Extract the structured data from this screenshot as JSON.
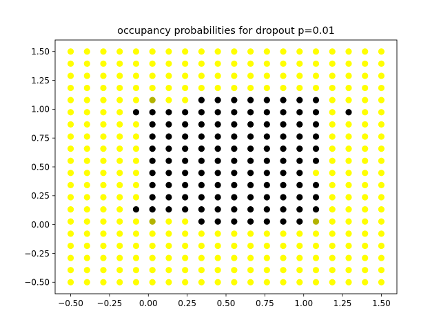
{
  "chart_data": {
    "type": "scatter",
    "title": "occupancy probabilities for dropout p=0.01",
    "xlabel": "",
    "ylabel": "",
    "xlim": [
      -0.6,
      1.6
    ],
    "ylim": [
      -0.6,
      1.6
    ],
    "x_ticks": [
      -0.5,
      -0.25,
      0.0,
      0.25,
      0.5,
      0.75,
      1.0,
      1.25,
      1.5
    ],
    "x_tick_labels": [
      "−0.50",
      "−0.25",
      "0.00",
      "0.25",
      "0.50",
      "0.75",
      "1.00",
      "1.25",
      "1.50"
    ],
    "y_ticks": [
      -0.5,
      -0.25,
      0.0,
      0.25,
      0.5,
      0.75,
      1.0,
      1.25,
      1.5
    ],
    "y_tick_labels": [
      "−0.50",
      "−0.25",
      "0.00",
      "0.25",
      "0.50",
      "0.75",
      "1.00",
      "1.25",
      "1.50"
    ],
    "grid": false,
    "colors": {
      "low_probability": "#ffff00",
      "high_probability": "#000000"
    },
    "x": [
      -0.5,
      -0.394737,
      -0.289474,
      -0.184211,
      -0.078947,
      0.026316,
      0.131579,
      0.236842,
      0.342105,
      0.447368,
      0.552632,
      0.657895,
      0.763158,
      0.868421,
      0.973684,
      1.078947,
      1.184211,
      1.289474,
      1.394737,
      1.5
    ],
    "y": [
      -0.5,
      -0.394737,
      -0.289474,
      -0.184211,
      -0.078947,
      0.026316,
      0.131579,
      0.236842,
      0.342105,
      0.447368,
      0.552632,
      0.657895,
      0.763158,
      0.868421,
      0.973684,
      1.078947,
      1.184211,
      1.289474,
      1.394737,
      1.5
    ],
    "occupancy_rows_top_to_bottom": [
      "00000000000000000000",
      "00000000000000000000",
      "00000000000000000000",
      "00000000000000000000",
      "00000300111111110000",
      "00001111111111110100",
      "00000111111111110000",
      "00000111111111110000",
      "00000111111111110000",
      "00000111111111110000",
      "00000111111111100000",
      "00000111111111110000",
      "00000111111111110000",
      "00001111111111110000",
      "00000300111111130000",
      "00000000000000000000",
      "00000000000000000000",
      "00000000000000000000",
      "00000000000000000000",
      "00000000000000000000"
    ],
    "occupancy_value_scale": "0 = 0.0 (yellow), 3 = 0.3, 1 = 1.0 (black)"
  }
}
